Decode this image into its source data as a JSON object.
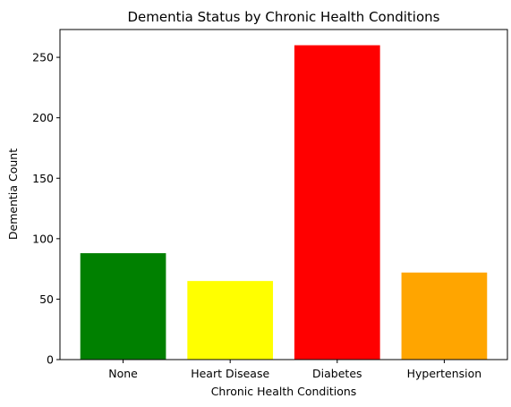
{
  "chart_data": {
    "type": "bar",
    "title": "Dementia Status by Chronic Health Conditions",
    "xlabel": "Chronic Health Conditions",
    "ylabel": "Dementia Count",
    "categories": [
      "None",
      "Heart Disease",
      "Diabetes",
      "Hypertension"
    ],
    "values": [
      88,
      65,
      260,
      72
    ],
    "colors": [
      "#008000",
      "#ffff00",
      "#ff0000",
      "#ffa500"
    ],
    "ylim": [
      0,
      273
    ],
    "yticks": [
      0,
      50,
      100,
      150,
      200,
      250
    ],
    "grid": false,
    "legend": "none"
  }
}
